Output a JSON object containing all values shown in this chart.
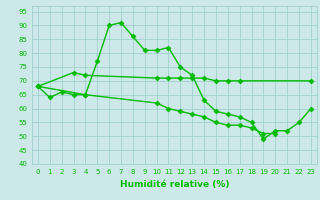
{
  "x": [
    0,
    1,
    2,
    3,
    4,
    5,
    6,
    7,
    8,
    9,
    10,
    11,
    12,
    13,
    14,
    15,
    16,
    17,
    18,
    19,
    20,
    21,
    22,
    23
  ],
  "line_peak": [
    68,
    64,
    66,
    65,
    65,
    77,
    90,
    91,
    86,
    81,
    81,
    82,
    75,
    72,
    63,
    59,
    58,
    57,
    55,
    49,
    52,
    52,
    55,
    60
  ],
  "line_upper": [
    68,
    null,
    null,
    73,
    72,
    null,
    null,
    null,
    null,
    null,
    71,
    71,
    71,
    71,
    71,
    70,
    70,
    70,
    null,
    null,
    null,
    null,
    null,
    70
  ],
  "line_lower": [
    68,
    null,
    null,
    null,
    65,
    null,
    null,
    null,
    null,
    null,
    62,
    60,
    59,
    58,
    57,
    55,
    54,
    54,
    53,
    51,
    51,
    null,
    null,
    null
  ],
  "ylim": [
    40,
    97
  ],
  "xlim": [
    -0.5,
    23.5
  ],
  "yticks": [
    40,
    45,
    50,
    55,
    60,
    65,
    70,
    75,
    80,
    85,
    90,
    95
  ],
  "xticks": [
    0,
    1,
    2,
    3,
    4,
    5,
    6,
    7,
    8,
    9,
    10,
    11,
    12,
    13,
    14,
    15,
    16,
    17,
    18,
    19,
    20,
    21,
    22,
    23
  ],
  "xlabel": "Humidité relative (%)",
  "bg_color": "#cce8e8",
  "grid_color": "#99cccc",
  "line_color": "#00bb00",
  "marker": "D",
  "marker_size": 2.5,
  "linewidth": 1.0,
  "tick_fontsize": 5,
  "xlabel_fontsize": 6.5
}
